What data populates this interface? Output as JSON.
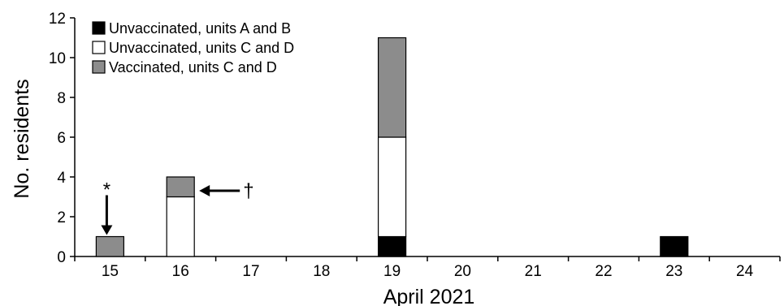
{
  "chart_data": {
    "type": "bar",
    "stacked": true,
    "categories": [
      "15",
      "16",
      "17",
      "18",
      "19",
      "20",
      "21",
      "22",
      "23",
      "24"
    ],
    "series": [
      {
        "name": "Unvaccinated, units A and B",
        "color": "#000000",
        "values": [
          0,
          0,
          0,
          0,
          1,
          0,
          0,
          0,
          1,
          0
        ]
      },
      {
        "name": "Unvaccinated, units C and D",
        "color": "#ffffff",
        "values": [
          0,
          3,
          0,
          0,
          5,
          0,
          0,
          0,
          0,
          0
        ]
      },
      {
        "name": "Vaccinated, units C and D",
        "color": "#8c8c8c",
        "values": [
          1,
          1,
          0,
          0,
          5,
          0,
          0,
          0,
          0,
          0
        ]
      }
    ],
    "title": "",
    "xlabel": "April 2021",
    "ylabel": "No. residents",
    "ylim": [
      0,
      12
    ],
    "yticks": [
      0,
      2,
      4,
      6,
      8,
      10,
      12
    ],
    "grid": false,
    "legend_position": "top-left",
    "annotations": [
      {
        "text": "*",
        "category": "15",
        "arrow": "down"
      },
      {
        "text": "†",
        "category": "16",
        "arrow": "left"
      }
    ]
  }
}
